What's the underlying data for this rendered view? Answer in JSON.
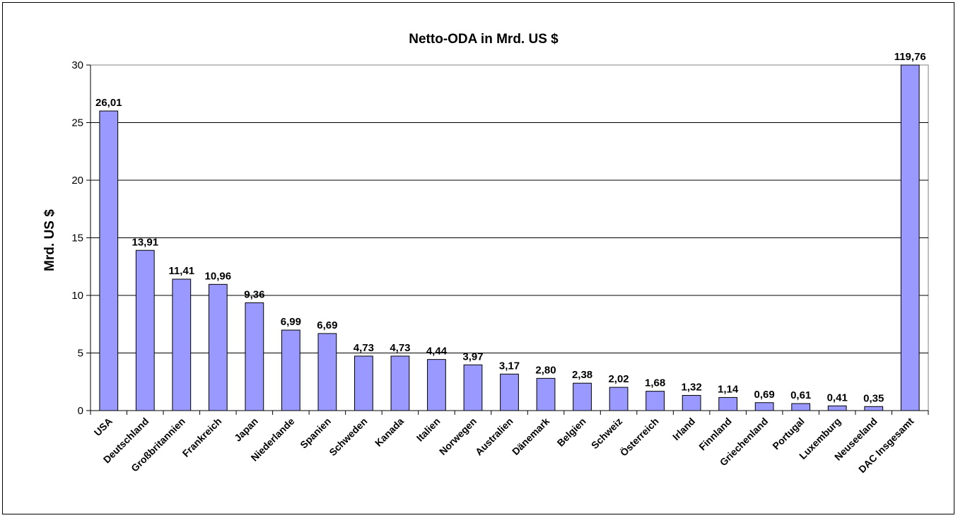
{
  "chart_data": {
    "type": "bar",
    "title": "Netto-ODA in Mrd. US $",
    "xlabel": "",
    "ylabel": "Mrd. US $",
    "ylim": [
      0,
      30
    ],
    "yticks": [
      0,
      5,
      10,
      15,
      20,
      25,
      30
    ],
    "grid": true,
    "legend": "none",
    "bar_color": "#9999ff",
    "categories": [
      "USA",
      "Deutschland",
      "Großbritannien",
      "Frankreich",
      "Japan",
      "Niederlande",
      "Spanien",
      "Schweden",
      "Kanada",
      "Italien",
      "Norwegen",
      "Australien",
      "Dänemark",
      "Belgien",
      "Schweiz",
      "Österreich",
      "Irland",
      "Finnland",
      "Griechenland",
      "Portugal",
      "Luxemburg",
      "Neuseeland",
      "DAC Insgesamt"
    ],
    "values": [
      26.01,
      13.91,
      11.41,
      10.96,
      9.36,
      6.99,
      6.69,
      4.73,
      4.73,
      4.44,
      3.97,
      3.17,
      2.8,
      2.38,
      2.02,
      1.68,
      1.32,
      1.14,
      0.69,
      0.61,
      0.41,
      0.35,
      119.76
    ],
    "data_labels": [
      "26,01",
      "13,91",
      "11,41",
      "10,96",
      "9,36",
      "6,99",
      "6,69",
      "4,73",
      "4,73",
      "4,44",
      "3,97",
      "3,17",
      "2,80",
      "2,38",
      "2,02",
      "1,68",
      "1,32",
      "1,14",
      "0,69",
      "0,61",
      "0,41",
      "0,35",
      "119,76"
    ]
  }
}
